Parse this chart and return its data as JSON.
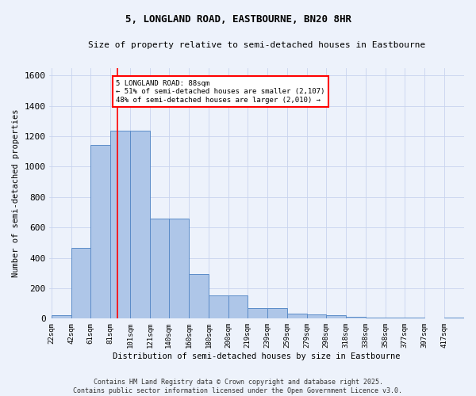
{
  "title": "5, LONGLAND ROAD, EASTBOURNE, BN20 8HR",
  "subtitle": "Size of property relative to semi-detached houses in Eastbourne",
  "xlabel": "Distribution of semi-detached houses by size in Eastbourne",
  "ylabel": "Number of semi-detached properties",
  "bin_labels": [
    "22sqm",
    "42sqm",
    "61sqm",
    "81sqm",
    "101sqm",
    "121sqm",
    "140sqm",
    "160sqm",
    "180sqm",
    "200sqm",
    "219sqm",
    "239sqm",
    "259sqm",
    "279sqm",
    "298sqm",
    "318sqm",
    "338sqm",
    "358sqm",
    "377sqm",
    "397sqm",
    "417sqm"
  ],
  "bin_edges": [
    22,
    42,
    61,
    81,
    101,
    121,
    140,
    160,
    180,
    200,
    219,
    239,
    259,
    279,
    298,
    318,
    338,
    358,
    377,
    397,
    417
  ],
  "bar_heights": [
    25,
    465,
    1140,
    1235,
    1235,
    660,
    660,
    295,
    155,
    155,
    70,
    70,
    35,
    30,
    20,
    12,
    8,
    8,
    5,
    3,
    8
  ],
  "bar_color": "#aec6e8",
  "bar_edge_color": "#5b8cc8",
  "grid_color": "#c8d4ee",
  "bg_color": "#edf2fb",
  "vline_x": 88,
  "vline_color": "red",
  "ylim": [
    0,
    1650
  ],
  "yticks": [
    0,
    200,
    400,
    600,
    800,
    1000,
    1200,
    1400,
    1600
  ],
  "annotation_text": "5 LONGLAND ROAD: 88sqm\n← 51% of semi-detached houses are smaller (2,107)\n48% of semi-detached houses are larger (2,010) →",
  "annotation_box_color": "white",
  "annotation_box_edge": "red",
  "footer": "Contains HM Land Registry data © Crown copyright and database right 2025.\nContains public sector information licensed under the Open Government Licence v3.0."
}
